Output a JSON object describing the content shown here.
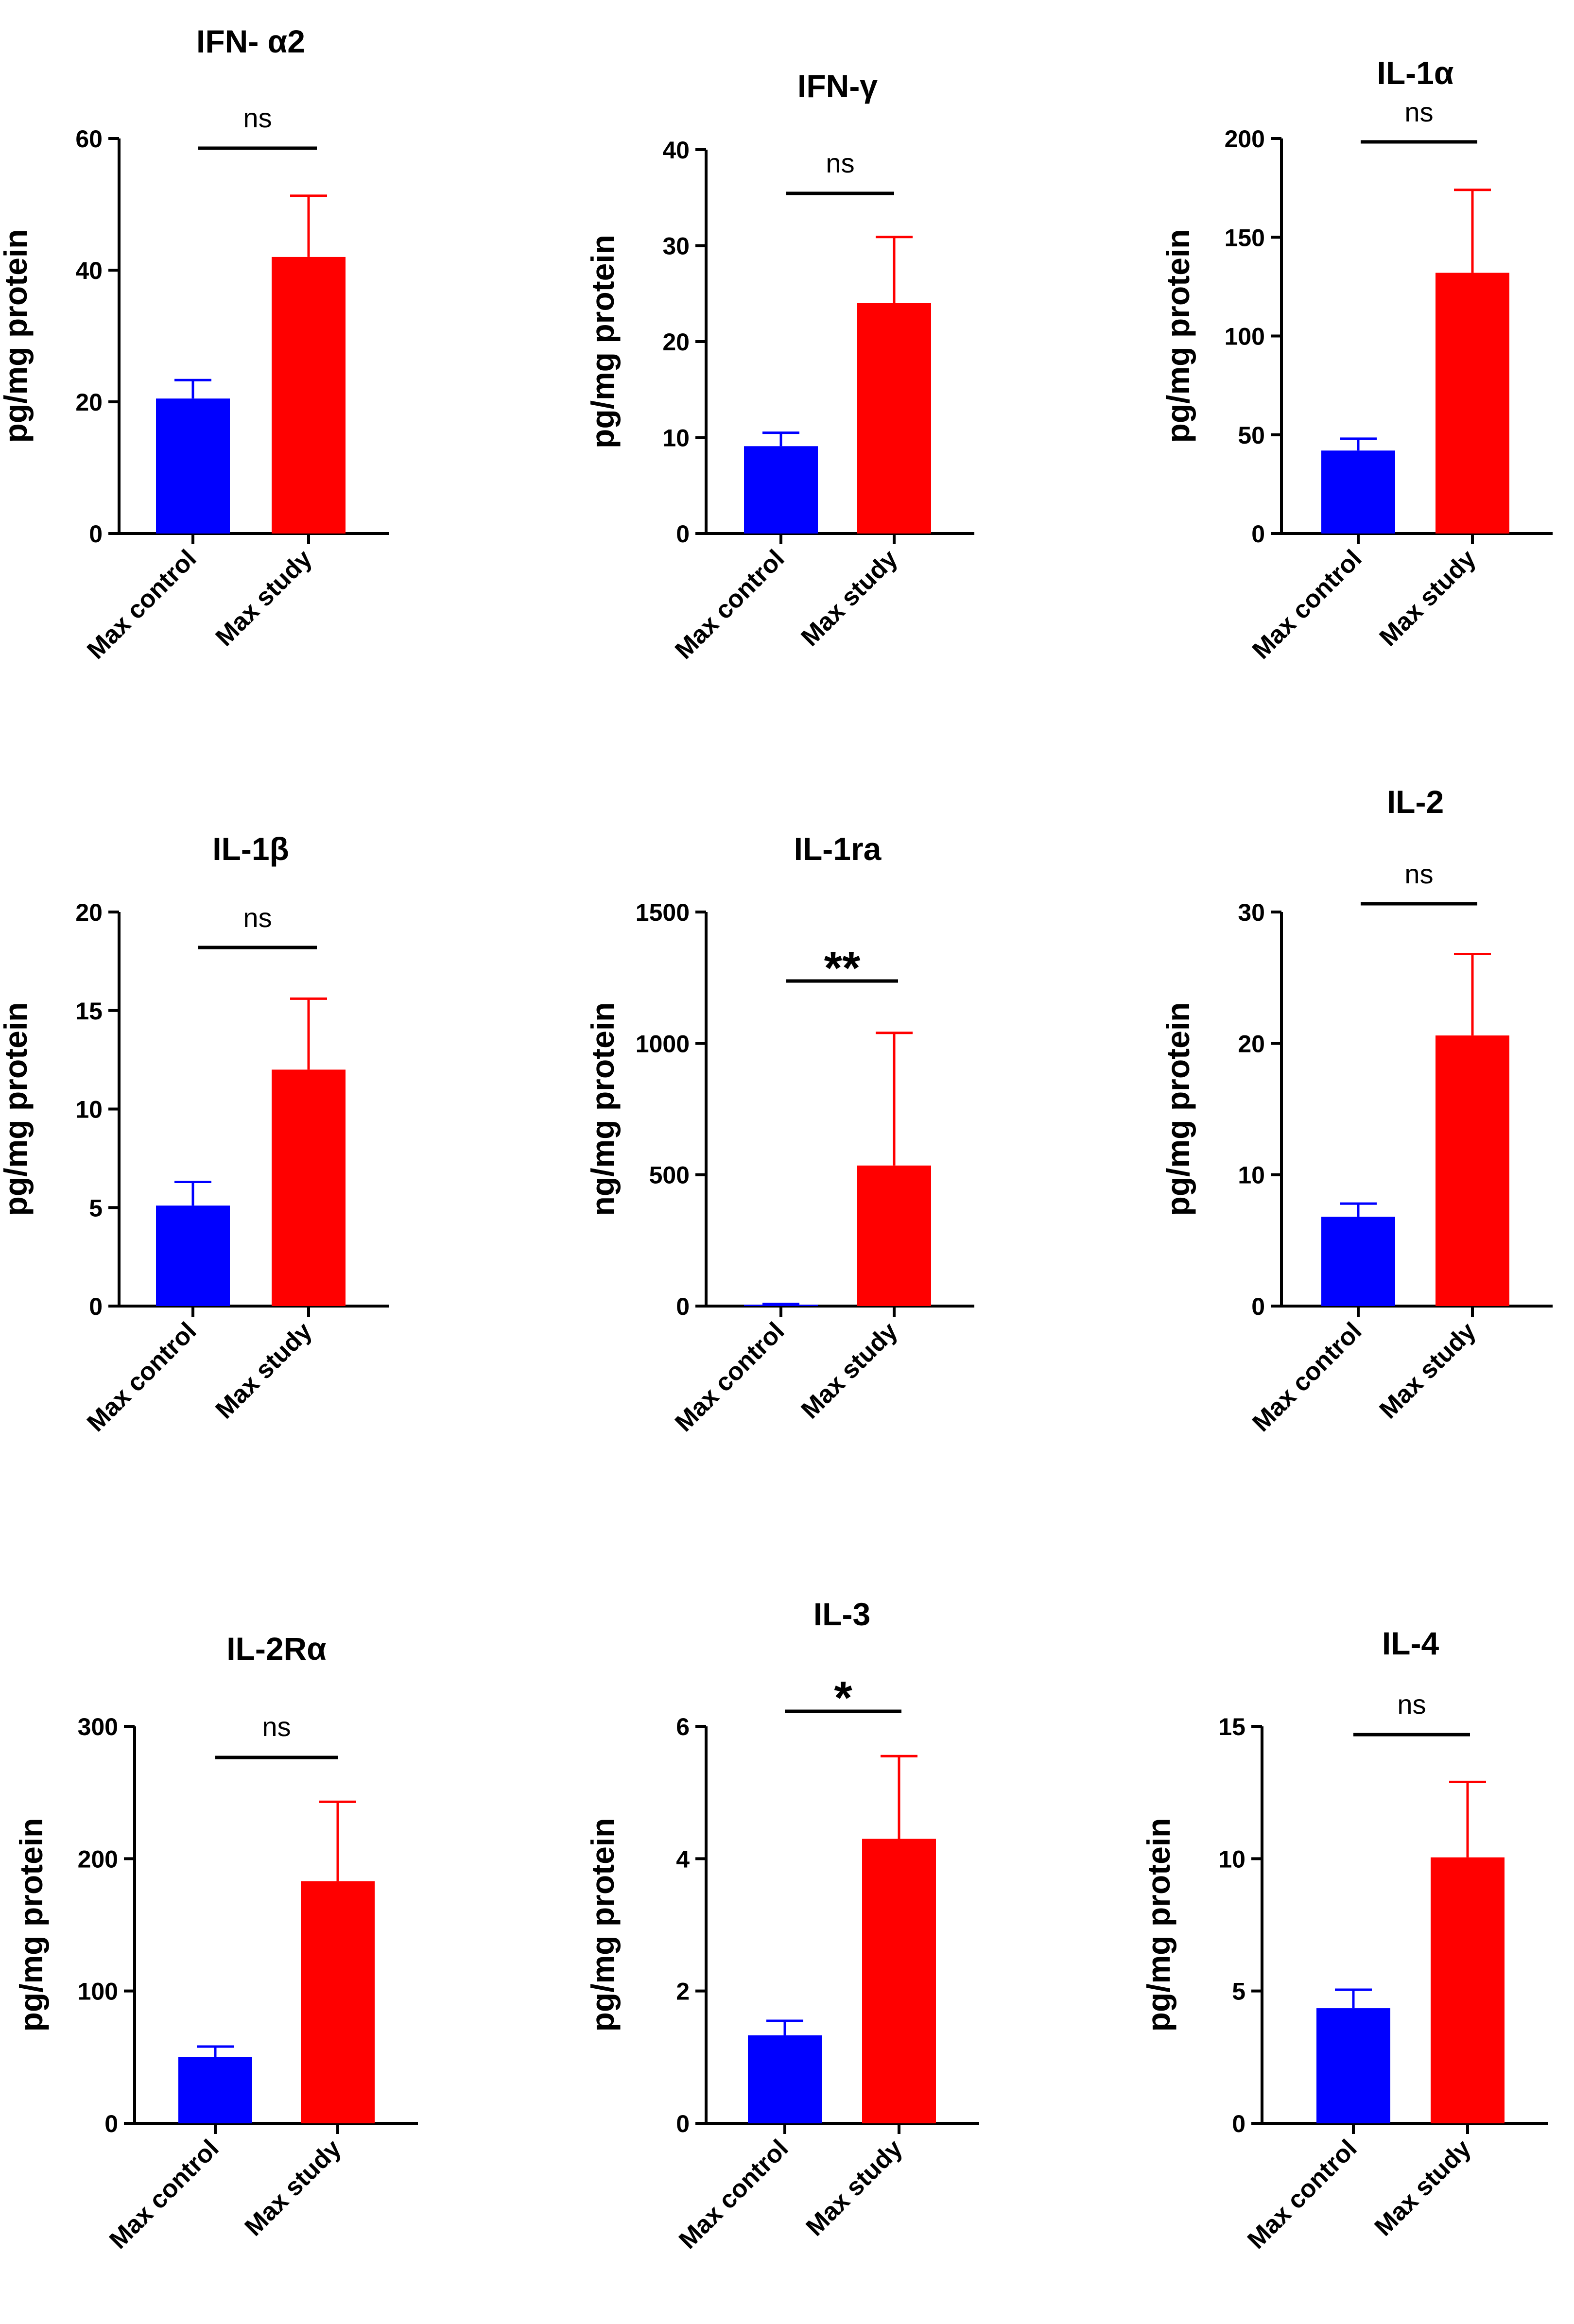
{
  "chart_data": [
    {
      "type": "bar",
      "title": "IFN- α2",
      "ylabel": "pg/mg protein",
      "ylim": [
        0,
        60
      ],
      "yticks": [
        0,
        20,
        40,
        60
      ],
      "categories": [
        "Max control",
        "Max study"
      ],
      "values": [
        20.5,
        42
      ],
      "errors": [
        2.8,
        9.3
      ],
      "colors": [
        "#0000ff",
        "#ff0000"
      ],
      "significance": "ns"
    },
    {
      "type": "bar",
      "title": "IFN-γ",
      "ylabel": "pg/mg protein",
      "ylim": [
        0,
        40
      ],
      "yticks": [
        0,
        10,
        20,
        30,
        40
      ],
      "categories": [
        "Max control",
        "Max study"
      ],
      "values": [
        9.1,
        24
      ],
      "errors": [
        1.4,
        6.9
      ],
      "colors": [
        "#0000ff",
        "#ff0000"
      ],
      "significance": "ns"
    },
    {
      "type": "bar",
      "title": "IL-1α",
      "ylabel": "pg/mg protein",
      "ylim": [
        0,
        200
      ],
      "yticks": [
        0,
        50,
        100,
        150,
        200
      ],
      "categories": [
        "Max control",
        "Max study"
      ],
      "values": [
        42,
        132
      ],
      "errors": [
        6,
        42
      ],
      "colors": [
        "#0000ff",
        "#ff0000"
      ],
      "significance": "ns"
    },
    {
      "type": "bar",
      "title": "IL-1β",
      "ylabel": "pg/mg protein",
      "ylim": [
        0,
        20
      ],
      "yticks": [
        0,
        5,
        10,
        15,
        20
      ],
      "categories": [
        "Max control",
        "Max study"
      ],
      "values": [
        5.1,
        12
      ],
      "errors": [
        1.2,
        3.6
      ],
      "colors": [
        "#0000ff",
        "#ff0000"
      ],
      "significance": "ns"
    },
    {
      "type": "bar",
      "title": "IL-1ra",
      "ylabel": "ng/mg protein",
      "ylim": [
        0,
        1500
      ],
      "yticks": [
        0,
        500,
        1000,
        1500
      ],
      "categories": [
        "Max control",
        "Max study"
      ],
      "values": [
        5,
        535
      ],
      "errors": [
        3,
        505
      ],
      "colors": [
        "#0000ff",
        "#ff0000"
      ],
      "significance": "**"
    },
    {
      "type": "bar",
      "title": "IL-2",
      "ylabel": "pg/mg protein",
      "ylim": [
        0,
        30
      ],
      "yticks": [
        0,
        10,
        20,
        30
      ],
      "categories": [
        "Max control",
        "Max study"
      ],
      "values": [
        6.8,
        20.6
      ],
      "errors": [
        1,
        6.2
      ],
      "colors": [
        "#0000ff",
        "#ff0000"
      ],
      "significance": "ns"
    },
    {
      "type": "bar",
      "title": "IL-2Rα",
      "ylabel": "pg/mg protein",
      "ylim": [
        0,
        300
      ],
      "yticks": [
        0,
        100,
        200,
        300
      ],
      "categories": [
        "Max control",
        "Max study"
      ],
      "values": [
        50,
        183
      ],
      "errors": [
        8,
        60
      ],
      "colors": [
        "#0000ff",
        "#ff0000"
      ],
      "significance": "ns"
    },
    {
      "type": "bar",
      "title": "IL-3",
      "ylabel": "pg/mg protein",
      "ylim": [
        0,
        6
      ],
      "yticks": [
        0,
        2,
        4,
        6
      ],
      "categories": [
        "Max control",
        "Max study"
      ],
      "values": [
        1.33,
        4.3
      ],
      "errors": [
        0.22,
        1.25
      ],
      "colors": [
        "#0000ff",
        "#ff0000"
      ],
      "significance": "*"
    },
    {
      "type": "bar",
      "title": "IL-4",
      "ylabel": "pg/mg protein",
      "ylim": [
        0,
        15
      ],
      "yticks": [
        0,
        5,
        10,
        15
      ],
      "categories": [
        "Max control",
        "Max study"
      ],
      "values": [
        4.35,
        10.05
      ],
      "errors": [
        0.7,
        2.85
      ],
      "colors": [
        "#0000ff",
        "#ff0000"
      ],
      "significance": "ns"
    }
  ]
}
